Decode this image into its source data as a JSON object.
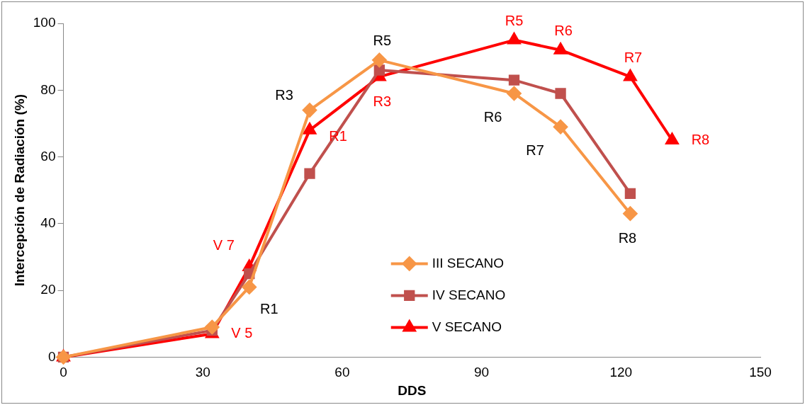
{
  "chart_data": {
    "type": "line",
    "xlabel": "DDS",
    "ylabel": "Intercepción de Radiación (%)",
    "series": [
      {
        "name": "III SECANO",
        "color": "#f79646",
        "marker": "diamond",
        "x": [
          0,
          32,
          40,
          53,
          68,
          97,
          107,
          122
        ],
        "values": [
          0,
          9,
          21,
          74,
          89,
          79,
          69,
          43
        ]
      },
      {
        "name": "IV SECANO",
        "color": "#c0504d",
        "marker": "square",
        "x": [
          0,
          32,
          40,
          53,
          68,
          97,
          107,
          122
        ],
        "values": [
          0,
          8,
          25,
          55,
          86,
          83,
          79,
          49
        ]
      },
      {
        "name": "V SECANO",
        "color": "#ff0000",
        "marker": "triangle",
        "x": [
          0,
          32,
          40,
          53,
          68,
          97,
          107,
          122,
          131
        ],
        "values": [
          0,
          7,
          27,
          68,
          84,
          95,
          92,
          84,
          65
        ]
      }
    ],
    "xlim": [
      0,
      150
    ],
    "xticks": [
      0,
      30,
      60,
      90,
      120,
      150
    ],
    "ylim": [
      0,
      100
    ],
    "yticks": [
      0,
      20,
      40,
      60,
      80,
      100
    ],
    "grid": false,
    "legend": "bottom",
    "annotations": [
      {
        "text": "R1",
        "x": 40,
        "y": 21
      },
      {
        "text": "R3",
        "x": 53,
        "y": 74
      },
      {
        "text": "R5",
        "x": 68,
        "y": 89
      },
      {
        "text": "R6",
        "x": 97,
        "y": 79
      },
      {
        "text": "R7",
        "x": 107,
        "y": 69
      },
      {
        "text": "R8",
        "x": 122,
        "y": 43
      },
      {
        "text": "V 5",
        "x": 32,
        "y": 7
      },
      {
        "text": "V 7",
        "x": 40,
        "y": 27
      },
      {
        "text": "R1",
        "x": 53,
        "y": 68
      },
      {
        "text": "R3",
        "x": 68,
        "y": 84
      },
      {
        "text": "R5",
        "x": 97,
        "y": 95
      },
      {
        "text": "R6",
        "x": 107,
        "y": 92
      },
      {
        "text": "R7",
        "x": 122,
        "y": 84
      },
      {
        "text": "R8",
        "x": 131,
        "y": 65
      }
    ]
  }
}
